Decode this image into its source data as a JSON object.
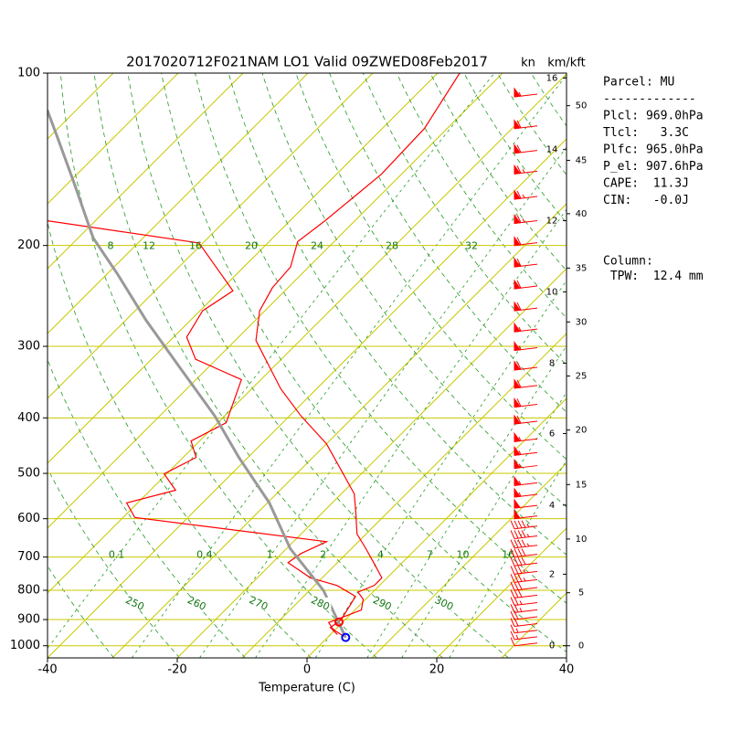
{
  "chart_data": {
    "type": "skewt",
    "title": "2017020712F021NAM LO1 Valid 09ZWED08Feb2017",
    "wind_unit": "kn",
    "height_unit": "km/kft",
    "xlabel": "Temperature (C)",
    "log_y": true,
    "xlim": [
      -40,
      40
    ],
    "ylim": [
      1050,
      100
    ],
    "xticks": [
      -40,
      -20,
      0,
      20,
      40
    ],
    "yticks": [
      100,
      200,
      300,
      400,
      500,
      600,
      700,
      800,
      900,
      1000
    ],
    "temperature": {
      "color": "#ff0000",
      "pressure": [
        967,
        936,
        911,
        896,
        866,
        829,
        806,
        785,
        761,
        716,
        672,
        638,
        585,
        543,
        505,
        444,
        397,
        356,
        293,
        260,
        237,
        218,
        197,
        181,
        164,
        150,
        125,
        100
      ],
      "values": [
        2.8,
        -0.4,
        -2.1,
        -1.1,
        1.0,
        -0.4,
        -2.3,
        -0.8,
        -0.8,
        -4.4,
        -8.2,
        -11.4,
        -14.9,
        -18.0,
        -22.3,
        -30.0,
        -38.2,
        -45.5,
        -56.8,
        -60.8,
        -62.4,
        -62.8,
        -65.6,
        -64.6,
        -63.8,
        -63.1,
        -63.5,
        -66.6
      ]
    },
    "dewpoint": {
      "color": "#ff0000",
      "pressure": [
        956,
        929,
        902,
        820,
        785,
        761,
        716,
        690,
        658,
        597,
        563,
        535,
        501,
        469,
        439,
        408,
        343,
        316,
        289,
        260,
        240,
        198,
        181
      ],
      "values": [
        1.1,
        -1.1,
        -0.6,
        -2.0,
        -6.5,
        -11.8,
        -17.6,
        -17.0,
        -14.9,
        -48.2,
        -51.7,
        -46.1,
        -50.4,
        -48.0,
        -51.3,
        -48.7,
        -53.0,
        -63.2,
        -68.0,
        -69.6,
        -68.0,
        -80.6,
        -107.5
      ]
    },
    "parcel": {
      "color": "#999999",
      "pressure": [
        967,
        800,
        677,
        563,
        469,
        397,
        324,
        270,
        225,
        194,
        155,
        129,
        116
      ],
      "values": [
        2.8,
        -7.9,
        -19.4,
        -29.7,
        -41.4,
        -51.5,
        -64.9,
        -76.9,
        -88.2,
        -97.7,
        -109.3,
        -118.9,
        -124.5
      ]
    },
    "markers": [
      {
        "pressure": 909,
        "temperature": -0.6,
        "color": "#ff0000"
      },
      {
        "pressure": 967,
        "temperature": 2.8,
        "color": "#0000ff"
      }
    ],
    "wind": {
      "color": "#ff0000",
      "pressure": [
        110,
        125,
        138,
        150,
        166,
        183,
        200,
        218,
        238,
        260,
        283,
        305,
        330,
        355,
        383,
        410,
        440,
        465,
        490,
        525,
        550,
        575,
        600,
        625,
        650,
        675,
        700,
        725,
        750,
        775,
        800,
        825,
        850,
        875,
        900,
        925,
        950,
        975,
        1000
      ],
      "speed": [
        55,
        60,
        60,
        65,
        65,
        65,
        60,
        60,
        60,
        60,
        55,
        55,
        60,
        60,
        60,
        60,
        55,
        55,
        55,
        55,
        55,
        50,
        50,
        45,
        45,
        45,
        40,
        40,
        35,
        35,
        30,
        30,
        25,
        25,
        20,
        20,
        15,
        15,
        10
      ]
    },
    "dry_adiabat_labels": [
      250,
      260,
      270,
      280,
      290,
      300
    ],
    "mixing_ratio_labels": [
      0.1,
      0.4,
      1,
      2,
      4,
      7,
      10,
      16
    ],
    "moist_adiabat_labels": [
      8,
      12,
      16,
      20,
      24,
      28,
      32
    ],
    "km_axis": {
      "ticks": [
        0,
        2,
        4,
        6,
        8,
        10,
        12,
        14,
        16
      ],
      "pressures": [
        1000,
        750,
        568,
        426,
        321,
        241,
        181,
        136,
        102
      ]
    },
    "kft_axis": {
      "ticks": [
        0,
        5,
        10,
        15,
        20,
        25,
        30,
        35,
        40,
        45,
        50
      ],
      "pressures": [
        1000,
        808,
        651,
        523,
        420,
        338,
        272,
        219,
        176,
        142,
        114
      ]
    },
    "panel": [
      "Parcel: MU",
      "-------------",
      "Plcl: 969.0hPa",
      "Tlcl:   3.3C",
      "Plfc: 965.0hPa",
      "P_el: 907.6hPa",
      "CAPE:  11.3J",
      "CIN:   -0.0J"
    ],
    "column": [
      "Column:",
      " TPW:  12.4 mm"
    ]
  }
}
